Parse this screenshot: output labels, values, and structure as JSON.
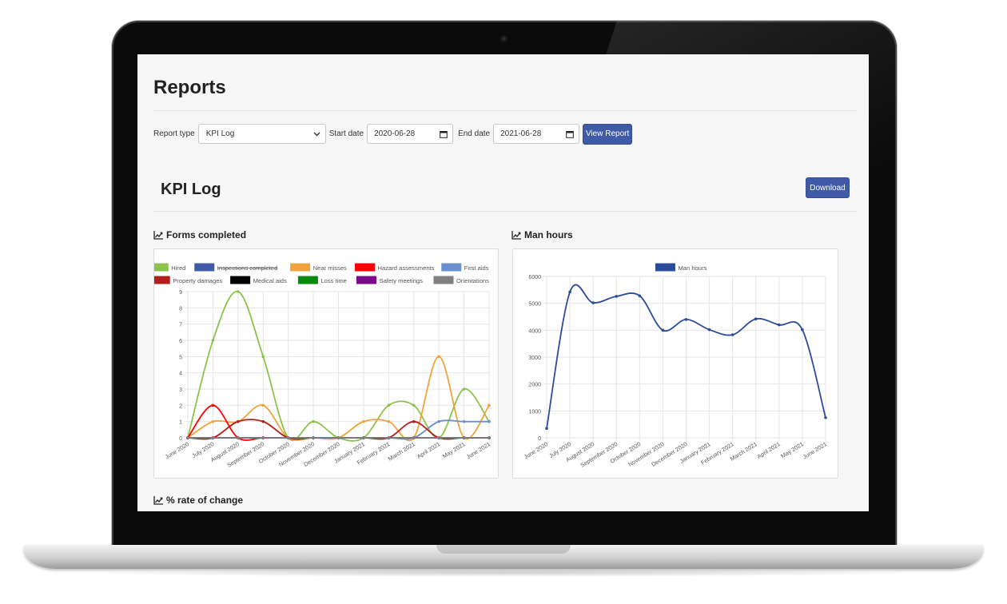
{
  "page": {
    "title": "Reports"
  },
  "filters": {
    "report_type_label": "Report type",
    "report_type_value": "KPI Log",
    "start_label": "Start date",
    "start_value": "2020-06-28",
    "end_label": "End date",
    "end_value": "2021-06-28",
    "view_button": "View Report"
  },
  "report": {
    "title": "KPI Log",
    "download_button": "Download"
  },
  "cards": {
    "forms_title": "Forms completed",
    "man_hours_title": "Man hours",
    "rate_title": "% rate of change"
  },
  "colors": {
    "primary": "#3f5aa6",
    "hired": "#8bc34a",
    "inspections": "#3f5aa6",
    "near_misses": "#f0a33a",
    "hazard": "#ff0000",
    "first_aids": "#6a8fd0",
    "property": "#b71c1c",
    "medical": "#000000",
    "loss_time": "#0a8a0a",
    "safety": "#7b0a8a",
    "orientations": "#808080",
    "man_hours": "#2d4b9b"
  },
  "chart_data": [
    {
      "type": "line",
      "categories": [
        "June 2020",
        "July 2020",
        "August 2020",
        "September 2020",
        "October 2020",
        "November 2020",
        "December 2020",
        "January 2021",
        "February 2021",
        "March 2021",
        "April 2021",
        "May 2021",
        "June 2021"
      ],
      "ylim": [
        0,
        9
      ],
      "yticks": [
        0,
        1,
        2,
        3,
        4,
        5,
        6,
        7,
        8,
        9
      ],
      "series": [
        {
          "name": "Hired",
          "color": "#8bc34a",
          "values": [
            0,
            6,
            9,
            5,
            0,
            1,
            0,
            0,
            2,
            2,
            0,
            3,
            1
          ]
        },
        {
          "name": "Inspections completed",
          "color": "#3f5aa6",
          "hidden": true,
          "values": [
            0,
            0,
            0,
            0,
            0,
            0,
            0,
            0,
            0,
            0,
            1,
            1,
            1
          ]
        },
        {
          "name": "Near misses",
          "color": "#f0a33a",
          "values": [
            0,
            1,
            1,
            2,
            0,
            0,
            0,
            1,
            1,
            0,
            5,
            0,
            2
          ]
        },
        {
          "name": "Hazard assessments",
          "color": "#ff0000",
          "values": [
            0,
            2,
            0,
            0,
            0,
            0,
            0,
            0,
            0,
            0,
            0,
            0,
            0
          ]
        },
        {
          "name": "First aids",
          "color": "#6a8fd0",
          "values": [
            0,
            0,
            0,
            0,
            0,
            0,
            0,
            0,
            0,
            0,
            1,
            1,
            1
          ]
        },
        {
          "name": "Property damages",
          "color": "#b71c1c",
          "values": [
            0,
            0,
            1,
            1,
            0,
            0,
            0,
            0,
            0,
            1,
            0,
            0,
            0
          ]
        },
        {
          "name": "Medical aids",
          "color": "#000000",
          "values": [
            0,
            0,
            0,
            0,
            0,
            0,
            0,
            0,
            0,
            0,
            0,
            0,
            0
          ]
        },
        {
          "name": "Loss time",
          "color": "#0a8a0a",
          "values": [
            0,
            0,
            0,
            0,
            0,
            0,
            0,
            0,
            0,
            0,
            0,
            0,
            0
          ]
        },
        {
          "name": "Safety meetings",
          "color": "#7b0a8a",
          "values": [
            0,
            0,
            0,
            0,
            0,
            0,
            0,
            0,
            0,
            0,
            0,
            0,
            0
          ]
        },
        {
          "name": "Orientations",
          "color": "#808080",
          "values": [
            0,
            0,
            0,
            0,
            0,
            0,
            0,
            0,
            0,
            0,
            0,
            0,
            0
          ]
        }
      ]
    },
    {
      "type": "line",
      "categories": [
        "June 2020",
        "July 2020",
        "August 2020",
        "September 2020",
        "October 2020",
        "November 2020",
        "December 2020",
        "January 2021",
        "February 2021",
        "March 2021",
        "April 2021",
        "May 2021",
        "June 2021"
      ],
      "ylim": [
        0,
        6000
      ],
      "yticks": [
        0,
        1000,
        2000,
        3000,
        4000,
        5000,
        6000
      ],
      "series": [
        {
          "name": "Man hours",
          "color": "#2d4b9b",
          "values": [
            350,
            5420,
            5020,
            5260,
            5280,
            4000,
            4400,
            4020,
            3830,
            4420,
            4200,
            4020,
            750
          ]
        }
      ]
    }
  ]
}
